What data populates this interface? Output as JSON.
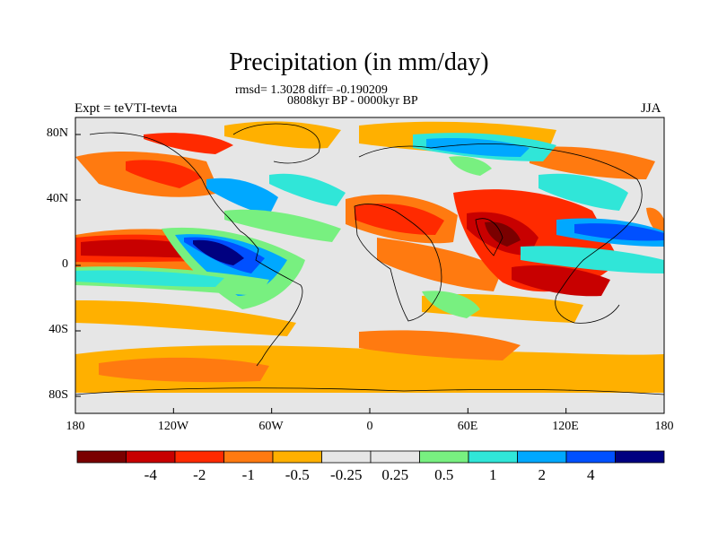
{
  "title": "Precipitation (in mm/day)",
  "stats_line": "rmsd= 1.3028 diff= -0.190209",
  "period_line": "0808kyr BP - 0000kyr BP",
  "left_label": "Expt = teVTI-tevta",
  "right_label": "JJA",
  "lat_ticks": [
    "80N",
    "40N",
    "0",
    "40S",
    "80S"
  ],
  "lon_ticks": [
    "180",
    "120W",
    "60W",
    "0",
    "60E",
    "120E",
    "180"
  ],
  "colorbar": {
    "colors": [
      "#7a0000",
      "#c80000",
      "#ff2a00",
      "#ff7a10",
      "#ffb000",
      "#e6e6e6",
      "#e6e6e6",
      "#78f080",
      "#30e6d8",
      "#00a8ff",
      "#0050ff",
      "#000080"
    ],
    "labels": [
      "-4",
      "-2",
      "-1",
      "-0.5",
      "-0.25",
      "0.25",
      "0.5",
      "1",
      "2",
      "4"
    ]
  },
  "map": {
    "background": "#e6e6e6",
    "extent": {
      "lon": [
        -180,
        180
      ],
      "lat": [
        -90,
        90
      ]
    }
  }
}
